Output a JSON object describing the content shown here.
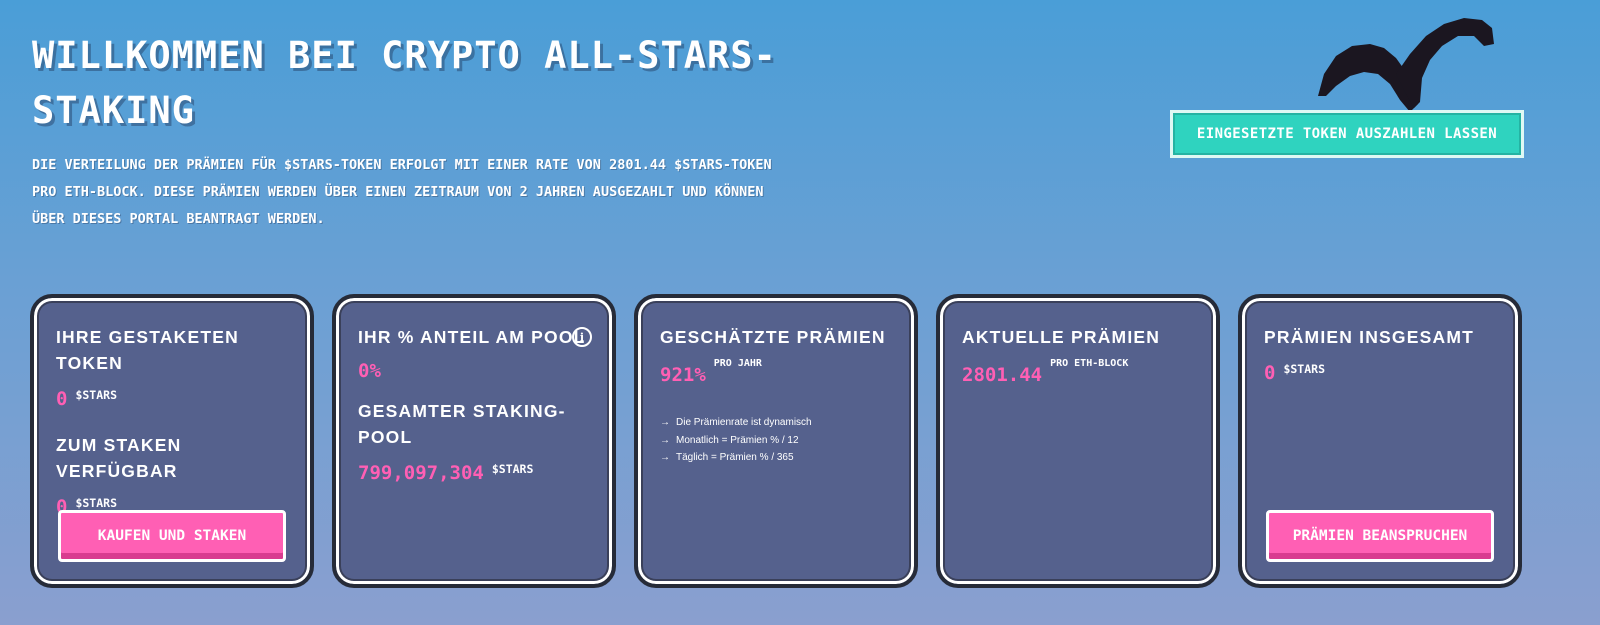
{
  "hero": {
    "title": "Willkommen bei Crypto All-Stars-Staking",
    "intro": "Die Verteilung der Prämien für $STARS-Token erfolgt mit einer Rate von 2801.44 $STARS-Token pro ETH-Block. Diese Prämien werden über einen Zeitraum von 2 Jahren ausgezahlt und können über dieses Portal beantragt werden.",
    "withdraw_label": "Eingesetzte Token auszahlen lassen"
  },
  "cards": {
    "staked": {
      "heading": "Ihre gestaketen Token",
      "value": "0",
      "unit": "$STARS",
      "available_heading": "Zum Staken verfügbar",
      "available_value": "0",
      "available_unit": "$STARS",
      "button_label": "Kaufen und staken"
    },
    "share": {
      "heading": "Ihr % Anteil am Pool",
      "info_icon": "i",
      "value": "0%",
      "pool_heading": "Gesamter Staking-Pool",
      "pool_value": "799,097,304",
      "pool_unit": "$STARS"
    },
    "estimated": {
      "heading": "Geschätzte Prämien",
      "value": "921%",
      "suffix": "pro Jahr",
      "notes": [
        "Die Prämienrate ist dynamisch",
        "Monatlich = Prämien % / 12",
        "Täglich = Prämien % / 365"
      ]
    },
    "current": {
      "heading": "Aktuelle Prämien",
      "value": "2801.44",
      "suffix": "pro ETH-Block"
    },
    "total": {
      "heading": "Prämien insgesamt",
      "value": "0",
      "unit": "$STARS",
      "button_label": "Prämien beanspruchen"
    }
  },
  "colors": {
    "accent_pink": "#ff5fb4",
    "accent_teal": "#2fd3bf",
    "card_bg": "#55618d"
  }
}
